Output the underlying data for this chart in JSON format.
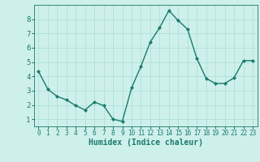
{
  "x": [
    0,
    1,
    2,
    3,
    4,
    5,
    6,
    7,
    8,
    9,
    10,
    11,
    12,
    13,
    14,
    15,
    16,
    17,
    18,
    19,
    20,
    21,
    22,
    23
  ],
  "y": [
    4.35,
    3.1,
    2.6,
    2.35,
    1.95,
    1.65,
    2.2,
    1.95,
    1.0,
    0.85,
    3.2,
    4.7,
    6.4,
    7.4,
    8.6,
    7.9,
    7.3,
    5.25,
    3.85,
    3.5,
    3.5,
    3.9,
    5.1,
    5.1
  ],
  "line_color": "#1a7a6e",
  "marker": "D",
  "markersize": 2.0,
  "linewidth": 1.0,
  "bg_color": "#cef0ea",
  "grid_color": "#aaddd6",
  "xlabel": "Humidex (Indice chaleur)",
  "xlabel_fontsize": 7,
  "ylabel_ticks": [
    1,
    2,
    3,
    4,
    5,
    6,
    7,
    8
  ],
  "xlim": [
    -0.5,
    23.5
  ],
  "ylim": [
    0.5,
    9.0
  ],
  "tick_color": "#1a7a6e",
  "axis_color": "#1a7a6e",
  "xlabel_color": "#1a7a6e",
  "tick_fontsize": 5.5,
  "ytick_fontsize": 6.5
}
